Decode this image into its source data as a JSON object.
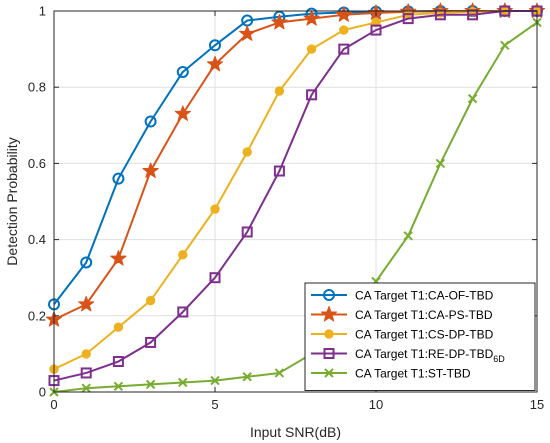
{
  "chart_data": {
    "type": "line",
    "xlabel": "Input SNR(dB)",
    "ylabel": "Detection Probability",
    "xlim": [
      0,
      15
    ],
    "ylim": [
      0,
      1
    ],
    "x_ticks": [
      0,
      5,
      10,
      15
    ],
    "y_ticks": [
      0,
      0.2,
      0.4,
      0.6,
      0.8,
      1
    ],
    "y_tick_labels": [
      "0",
      "0.2",
      "0.4",
      "0.6",
      "0.8",
      "1"
    ],
    "grid": true,
    "legend_position": "bottom-right",
    "x": [
      0,
      1,
      2,
      3,
      4,
      5,
      6,
      7,
      8,
      9,
      10,
      11,
      12,
      13,
      14,
      15
    ],
    "series": [
      {
        "name": "CA Target T1:CA-OF-TBD",
        "color": "#0072BD",
        "marker": "circle",
        "values": [
          0.23,
          0.34,
          0.56,
          0.71,
          0.84,
          0.91,
          0.975,
          0.985,
          0.993,
          0.996,
          0.998,
          0.999,
          1.0,
          1.0,
          1.0,
          1.0
        ]
      },
      {
        "name": "CA Target T1:CA-PS-TBD",
        "color": "#D95319",
        "marker": "star",
        "values": [
          0.19,
          0.23,
          0.35,
          0.58,
          0.73,
          0.86,
          0.94,
          0.97,
          0.98,
          0.99,
          0.995,
          0.998,
          1.0,
          1.0,
          1.0,
          1.0
        ]
      },
      {
        "name": "CA Target T1:CS-DP-TBD",
        "color": "#EDB120",
        "marker": "circle-filled",
        "values": [
          0.06,
          0.1,
          0.17,
          0.24,
          0.36,
          0.48,
          0.63,
          0.79,
          0.9,
          0.95,
          0.97,
          0.99,
          0.995,
          0.998,
          1.0,
          1.0
        ]
      },
      {
        "name": "CA Target T1:RE-DP-TBD",
        "name_subscript": "6D",
        "color": "#7E2F8E",
        "marker": "square",
        "values": [
          0.03,
          0.05,
          0.08,
          0.13,
          0.21,
          0.3,
          0.42,
          0.58,
          0.78,
          0.9,
          0.95,
          0.98,
          0.99,
          0.99,
          1.0,
          1.0
        ]
      },
      {
        "name": "CA Target T1:ST-TBD",
        "color": "#77AC30",
        "marker": "x",
        "values": [
          0.0,
          0.01,
          0.015,
          0.02,
          0.025,
          0.03,
          0.04,
          0.05,
          0.1,
          0.18,
          0.29,
          0.41,
          0.6,
          0.77,
          0.91,
          0.97
        ]
      }
    ]
  }
}
